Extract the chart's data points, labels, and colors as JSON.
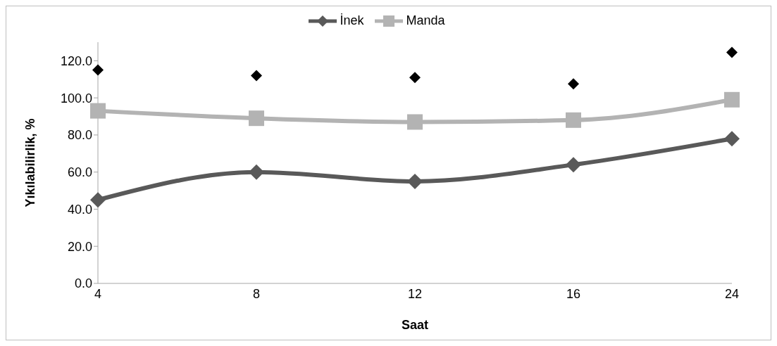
{
  "chart_data": {
    "type": "line",
    "xlabel": "Saat",
    "ylabel": "Yıkılabilirlik, %",
    "categories": [
      "4",
      "8",
      "12",
      "16",
      "24"
    ],
    "series": [
      {
        "name": "İnek",
        "color": "#595959",
        "marker": "diamond",
        "values": [
          45,
          60,
          55,
          64,
          78
        ]
      },
      {
        "name": "Manda",
        "color": "#b3b3b3",
        "marker": "square",
        "values": [
          93,
          89,
          87,
          88,
          99
        ]
      },
      {
        "type": "scatter",
        "color": "#000000",
        "marker": "diamond",
        "x": [
          "4",
          "8",
          "12",
          "16",
          "24"
        ],
        "values": [
          115,
          112,
          111,
          107.5,
          124.5
        ]
      }
    ],
    "ylim": [
      0,
      130
    ],
    "yticks": [
      {
        "value": 0,
        "label": "0.0"
      },
      {
        "value": 20,
        "label": "20.0"
      },
      {
        "value": 40,
        "label": "40.0"
      },
      {
        "value": 60,
        "label": "60.0"
      },
      {
        "value": 80,
        "label": "80.0"
      },
      {
        "value": 100,
        "label": "100.0"
      },
      {
        "value": 120,
        "label": "120.0"
      }
    ],
    "grid": false,
    "legend": "top",
    "line_style": "solid"
  }
}
